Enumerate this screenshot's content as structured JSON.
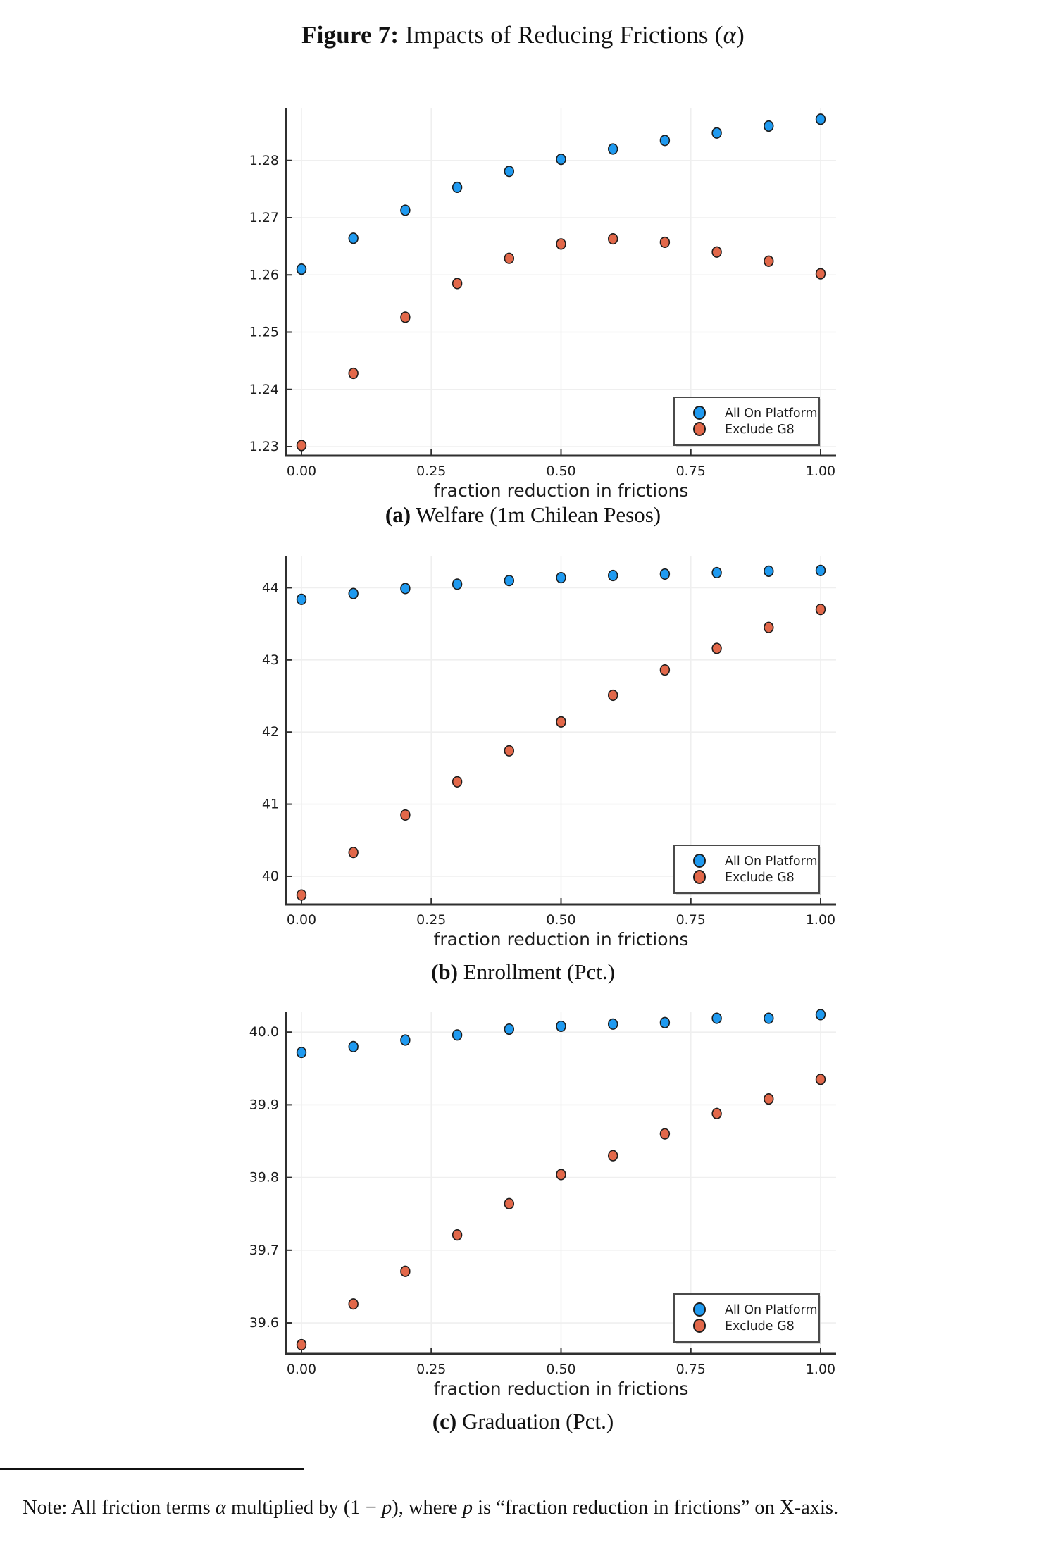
{
  "figure": {
    "title_segments": [
      {
        "text": "Figure 7:",
        "bold": true
      },
      {
        "text": " Impacts of Reducing Frictions ("
      },
      {
        "text": "α",
        "italic": true
      },
      {
        "text": ")"
      }
    ],
    "note_segments": [
      {
        "text": "Note: All friction terms "
      },
      {
        "text": "α",
        "italic": true
      },
      {
        "text": " multiplied by ("
      },
      {
        "text": "1 − "
      },
      {
        "text": "p",
        "italic": true
      },
      {
        "text": "), where "
      },
      {
        "text": "p",
        "italic": true
      },
      {
        "text": " is “fraction reduction in frictions” on X-axis."
      }
    ]
  },
  "colors": {
    "all_on_platform": "#1f9af0",
    "exclude_g8": "#e2684a",
    "marker_stroke": "#1c1c1c",
    "grid": "#efefef",
    "axis": "#2f2f2f",
    "legend_border": "#4a4a4a",
    "tick_text": "#1d1d1d"
  },
  "legend": {
    "items": [
      {
        "label": "All On Platform",
        "color_key": "all_on_platform"
      },
      {
        "label": "Exclude G8",
        "color_key": "exclude_g8"
      }
    ]
  },
  "chart_data": [
    {
      "id": "welfare",
      "type": "scatter",
      "caption_segments": [
        {
          "text": "(a)",
          "bold": true
        },
        {
          "text": " Welfare (1m Chilean Pesos)"
        }
      ],
      "xlabel": "fraction reduction in frictions",
      "x": [
        0.0,
        0.1,
        0.2,
        0.3,
        0.4,
        0.5,
        0.6,
        0.7,
        0.8,
        0.9,
        1.0
      ],
      "x_tick_labels": [
        "0.00",
        "0.25",
        "0.50",
        "0.75",
        "1.00"
      ],
      "x_tick_values": [
        0,
        0.25,
        0.5,
        0.75,
        1.0
      ],
      "y_tick_labels": [
        "1.23",
        "1.24",
        "1.25",
        "1.26",
        "1.27",
        "1.28"
      ],
      "y_tick_values": [
        1.23,
        1.24,
        1.25,
        1.26,
        1.27,
        1.28
      ],
      "ylim": [
        1.2284,
        1.2892
      ],
      "xlim": [
        -0.03,
        1.03
      ],
      "grid": true,
      "legend_position": "bottom-right",
      "series": [
        {
          "name": "All On Platform",
          "values": [
            1.261,
            1.2664,
            1.2713,
            1.2753,
            1.2781,
            1.2802,
            1.282,
            1.2835,
            1.2848,
            1.286,
            1.2872
          ]
        },
        {
          "name": "Exclude G8",
          "values": [
            1.2302,
            1.2428,
            1.2526,
            1.2585,
            1.2629,
            1.2654,
            1.2663,
            1.2657,
            1.264,
            1.2624,
            1.2602
          ]
        }
      ]
    },
    {
      "id": "enrollment",
      "type": "scatter",
      "caption_segments": [
        {
          "text": "(b)",
          "bold": true
        },
        {
          "text": " Enrollment (Pct.)"
        }
      ],
      "xlabel": "fraction reduction in frictions",
      "x": [
        0.0,
        0.1,
        0.2,
        0.3,
        0.4,
        0.5,
        0.6,
        0.7,
        0.8,
        0.9,
        1.0
      ],
      "x_tick_labels": [
        "0.00",
        "0.25",
        "0.50",
        "0.75",
        "1.00"
      ],
      "x_tick_values": [
        0,
        0.25,
        0.5,
        0.75,
        1.0
      ],
      "y_tick_labels": [
        "40",
        "41",
        "42",
        "43",
        "44"
      ],
      "y_tick_values": [
        40,
        41,
        42,
        43,
        44
      ],
      "ylim": [
        39.609,
        44.434
      ],
      "xlim": [
        -0.03,
        1.03
      ],
      "grid": true,
      "legend_position": "bottom-right",
      "series": [
        {
          "name": "All On Platform",
          "values": [
            43.84,
            43.92,
            43.99,
            44.05,
            44.1,
            44.14,
            44.17,
            44.19,
            44.21,
            44.23,
            44.24
          ]
        },
        {
          "name": "Exclude G8",
          "values": [
            39.74,
            40.33,
            40.85,
            41.31,
            41.74,
            42.14,
            42.51,
            42.86,
            43.16,
            43.45,
            43.7
          ]
        }
      ]
    },
    {
      "id": "graduation",
      "type": "scatter",
      "caption_segments": [
        {
          "text": "(c)",
          "bold": true
        },
        {
          "text": " Graduation (Pct.)"
        }
      ],
      "xlabel": "fraction reduction in frictions",
      "x": [
        0.0,
        0.1,
        0.2,
        0.3,
        0.4,
        0.5,
        0.6,
        0.7,
        0.8,
        0.9,
        1.0
      ],
      "x_tick_labels": [
        "0.00",
        "0.25",
        "0.50",
        "0.75",
        "1.00"
      ],
      "x_tick_values": [
        0,
        0.25,
        0.5,
        0.75,
        1.0
      ],
      "y_tick_labels": [
        "39.6",
        "39.7",
        "39.8",
        "39.9",
        "40.0"
      ],
      "y_tick_values": [
        39.6,
        39.7,
        39.8,
        39.9,
        40.0
      ],
      "ylim": [
        39.5574,
        40.0273
      ],
      "xlim": [
        -0.03,
        1.03
      ],
      "grid": true,
      "legend_position": "bottom-right",
      "series": [
        {
          "name": "All On Platform",
          "values": [
            39.972,
            39.98,
            39.989,
            39.996,
            40.004,
            40.008,
            40.011,
            40.013,
            40.019,
            40.019,
            40.024
          ]
        },
        {
          "name": "Exclude G8",
          "values": [
            39.57,
            39.626,
            39.671,
            39.721,
            39.764,
            39.804,
            39.83,
            39.86,
            39.888,
            39.908,
            39.935
          ]
        }
      ]
    }
  ]
}
